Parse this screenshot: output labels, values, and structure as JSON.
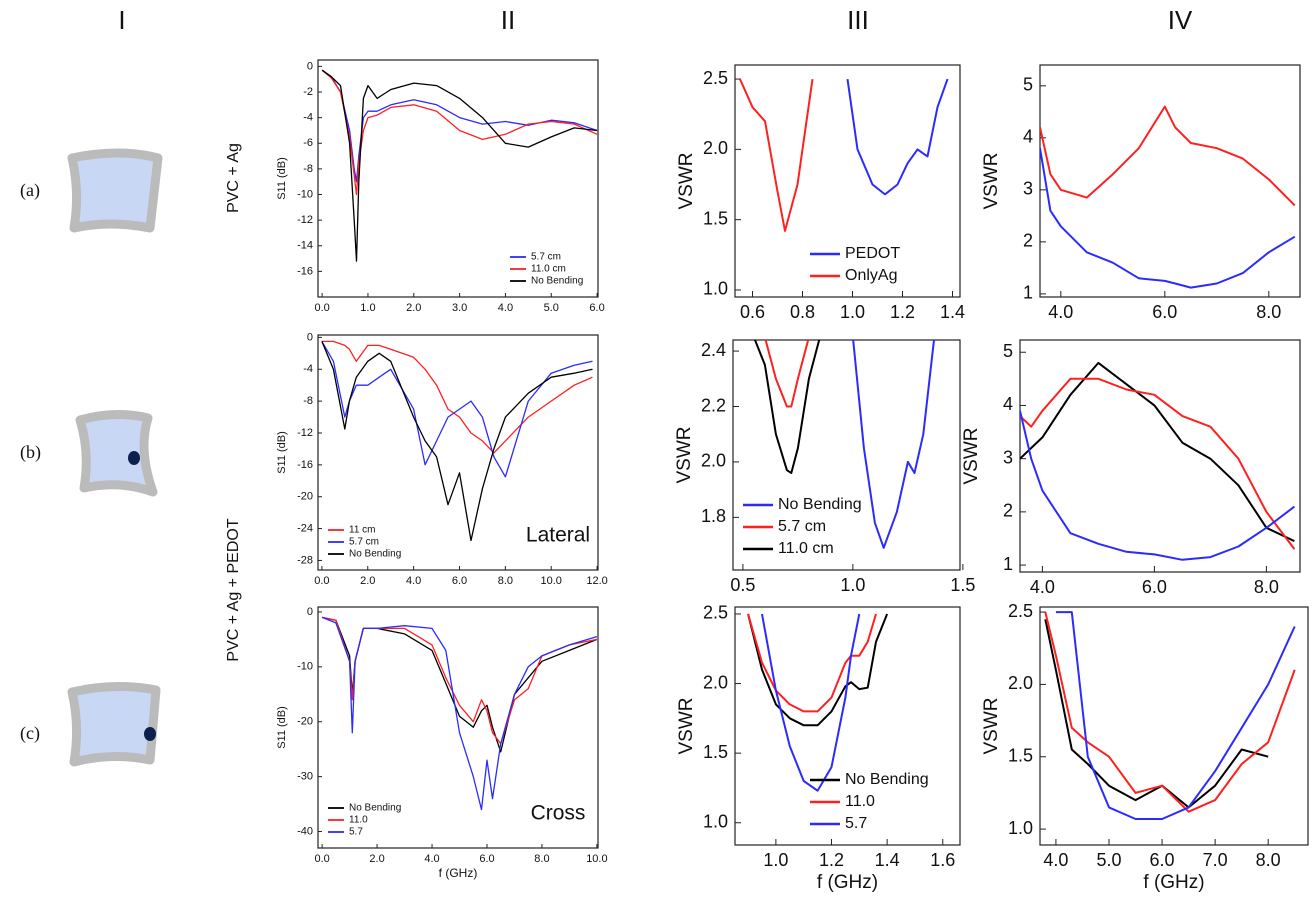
{
  "figure": {
    "columns": [
      "I",
      "II",
      "III",
      "IV"
    ],
    "rows": [
      "(a)",
      "(b)",
      "(c)"
    ],
    "row_groups": [
      "PVC + Ag",
      "PVC + Ag + PEDOT"
    ]
  },
  "chart_data": [
    {
      "type": "line",
      "ylabel": "S11 (dB)",
      "legend": "lower right",
      "x": [
        0,
        0.2,
        0.4,
        0.6,
        0.7,
        0.75,
        0.8,
        0.9,
        1.0,
        1.2,
        1.5,
        2.0,
        2.5,
        3.0,
        3.5,
        4.0,
        4.5,
        5.0,
        5.5,
        6.0
      ],
      "series": [
        {
          "name": "5.7 cm",
          "color": "#2b2bff",
          "values": [
            -0.3,
            -0.8,
            -2,
            -5,
            -8,
            -9,
            -7,
            -4,
            -3.5,
            -3.5,
            -3,
            -2.6,
            -3,
            -4,
            -4.5,
            -4.3,
            -4.6,
            -4.2,
            -4.4,
            -5
          ]
        },
        {
          "name": "11.0 cm",
          "color": "#ff2020",
          "values": [
            -0.3,
            -0.9,
            -2,
            -5.5,
            -8.5,
            -10,
            -7.5,
            -5,
            -4,
            -3.8,
            -3.2,
            -3,
            -3.5,
            -5,
            -5.7,
            -5.3,
            -4.5,
            -4.3,
            -4.5,
            -5.3
          ]
        },
        {
          "name": "No Bending",
          "color": "#000000",
          "values": [
            -0.3,
            -0.8,
            -1.5,
            -6,
            -12,
            -15.2,
            -9,
            -2.5,
            -1.5,
            -2.5,
            -1.8,
            -1.3,
            -1.5,
            -2.5,
            -4,
            -6,
            -6.3,
            -5.5,
            -4.8,
            -5
          ]
        }
      ],
      "xlim": [
        -0.09,
        6.02
      ],
      "ylim": [
        -18,
        0.5
      ],
      "xticks": [
        {
          "value": 0,
          "label": "0.0"
        },
        {
          "value": 1,
          "label": "1.0"
        },
        {
          "value": 2,
          "label": "2.0"
        },
        {
          "value": 3,
          "label": "3.0"
        },
        {
          "value": 4,
          "label": "4.0"
        },
        {
          "value": 5,
          "label": "5.0"
        },
        {
          "value": 6,
          "label": "6.0"
        }
      ],
      "yticks": [
        0,
        -2,
        -4,
        -6,
        -8,
        -10,
        -12,
        -14,
        -16
      ]
    },
    {
      "type": "line",
      "ylabel": "VSWR",
      "legend": "lower right",
      "x": [
        0.55,
        0.6,
        0.65,
        0.7,
        0.73,
        0.78,
        0.84,
        0.98,
        1.02,
        1.08,
        1.13,
        1.18,
        1.22,
        1.26,
        1.3,
        1.34,
        1.38
      ],
      "series": [
        {
          "name": "PEDOT",
          "color": "#2b2bff",
          "values": [
            null,
            null,
            null,
            null,
            null,
            null,
            null,
            2.5,
            2.0,
            1.75,
            1.68,
            1.75,
            1.9,
            2.0,
            1.95,
            2.3,
            2.5
          ]
        },
        {
          "name": "OnlyAg",
          "color": "#ff2020",
          "values": [
            2.5,
            2.3,
            2.2,
            1.7,
            1.42,
            1.75,
            2.5,
            null,
            null,
            null,
            null,
            null,
            null,
            null,
            null,
            null,
            null
          ]
        }
      ],
      "xlim": [
        0.53,
        1.43
      ],
      "ylim": [
        0.95,
        2.6
      ],
      "xticks": [
        0.6,
        0.8,
        {
          "value": 1.0,
          "label": "1.0"
        },
        1.2,
        1.4
      ],
      "yticks": [
        {
          "value": 1.0,
          "label": "1.0"
        },
        1.5,
        {
          "value": 2.0,
          "label": "2.0"
        },
        2.5
      ]
    },
    {
      "type": "line",
      "ylabel": "VSWR",
      "x": [
        3.6,
        3.8,
        4,
        4.5,
        5,
        5.5,
        6,
        6.2,
        6.5,
        7,
        7.5,
        8,
        8.5
      ],
      "series": [
        {
          "color": "#ff2020",
          "values": [
            4.2,
            3.3,
            3.0,
            2.85,
            3.3,
            3.8,
            4.6,
            4.2,
            3.9,
            3.8,
            3.6,
            3.2,
            2.7
          ]
        },
        {
          "color": "#2b2bff",
          "values": [
            3.8,
            2.6,
            2.3,
            1.8,
            1.6,
            1.3,
            1.25,
            1.2,
            1.12,
            1.2,
            1.4,
            1.8,
            2.1
          ]
        }
      ],
      "xlim": [
        3.6,
        8.6
      ],
      "ylim": [
        0.94,
        5.4
      ],
      "xticks": [
        {
          "value": 4,
          "label": "4.0"
        },
        {
          "value": 6,
          "label": "6.0"
        },
        {
          "value": 8,
          "label": "8.0"
        }
      ],
      "yticks": [
        1,
        2,
        3,
        4,
        5
      ]
    },
    {
      "type": "line",
      "ylabel": "S11 (dB)",
      "legend": "lower left",
      "annotation": "Lateral",
      "x": [
        0,
        0.5,
        1.0,
        1.2,
        1.5,
        2,
        2.5,
        3,
        4,
        4.5,
        5,
        5.5,
        6,
        6.5,
        7,
        7.5,
        8,
        9,
        10,
        11,
        11.8
      ],
      "series": [
        {
          "name": "11 cm",
          "color": "#ff2020",
          "values": [
            -0.5,
            -0.5,
            -1,
            -1.5,
            -3,
            -1,
            -1,
            -1.5,
            -2.5,
            -4,
            -6,
            -9,
            -10,
            -12,
            -13,
            -14.5,
            -13,
            -10,
            -8,
            -6,
            -5
          ]
        },
        {
          "name": "5.7 cm",
          "color": "#2b2bff",
          "values": [
            -0.5,
            -3,
            -10,
            -8,
            -6,
            -6,
            -5,
            -4,
            -9,
            -16,
            -13,
            -10,
            -9,
            -8,
            -10,
            -15,
            -17.5,
            -8,
            -4.5,
            -3.5,
            -3
          ]
        },
        {
          "name": "No Bending",
          "color": "#000000",
          "values": [
            -0.5,
            -4,
            -11.5,
            -8,
            -5,
            -3,
            -2,
            -3,
            -10,
            -13,
            -15,
            -21,
            -17,
            -25.5,
            -19,
            -14,
            -10,
            -7,
            -5,
            -4.5,
            -4
          ]
        }
      ],
      "xlim": [
        -0.17,
        12.04
      ],
      "ylim": [
        -29.2,
        0.3
      ],
      "xticks": [
        {
          "value": 0,
          "label": "0.0"
        },
        {
          "value": 2,
          "label": "2.0"
        },
        {
          "value": 4,
          "label": "4.0"
        },
        {
          "value": 6,
          "label": "6.0"
        },
        {
          "value": 8,
          "label": "8.0"
        },
        {
          "value": 10,
          "label": "10.0"
        },
        {
          "value": 12,
          "label": "12.0"
        }
      ],
      "yticks": [
        0,
        -4,
        -8,
        -12,
        -16,
        -20,
        -24,
        -28
      ]
    },
    {
      "type": "line",
      "ylabel": "VSWR",
      "legend": "lower left",
      "x": [
        0.55,
        0.6,
        0.65,
        0.7,
        0.72,
        0.75,
        0.8,
        0.85,
        1.0,
        1.05,
        1.1,
        1.14,
        1.2,
        1.25,
        1.28,
        1.32,
        1.37
      ],
      "series": [
        {
          "name": "No Bending",
          "color": "#2b2bff",
          "values": [
            null,
            null,
            null,
            null,
            null,
            null,
            null,
            null,
            2.45,
            2.05,
            1.78,
            1.69,
            1.82,
            2.0,
            1.96,
            2.1,
            2.45
          ]
        },
        {
          "name": "5.7 cm",
          "color": "#ff2020",
          "values": [
            null,
            2.45,
            2.3,
            2.2,
            2.2,
            2.3,
            2.45,
            null,
            null,
            null,
            null,
            null,
            null,
            null,
            null,
            null,
            null
          ]
        },
        {
          "name": "11.0 cm",
          "color": "#000000",
          "values": [
            2.45,
            2.35,
            2.1,
            1.97,
            1.96,
            2.05,
            2.3,
            2.45,
            null,
            null,
            null,
            null,
            null,
            null,
            null,
            null,
            null
          ]
        }
      ],
      "xlim": [
        0.455,
        1.487
      ],
      "ylim": [
        1.61,
        2.44
      ],
      "xticks": [
        0.5,
        {
          "value": 1.0,
          "label": "1.0"
        },
        1.5
      ],
      "yticks": [
        1.8,
        {
          "value": 2.0,
          "label": "2.0"
        },
        2.2,
        2.4
      ]
    },
    {
      "type": "line",
      "ylabel": "VSWR",
      "x": [
        3.6,
        3.8,
        4,
        4.5,
        5,
        5.5,
        6,
        6.5,
        7,
        7.5,
        8,
        8.5
      ],
      "series": [
        {
          "color": "#000000",
          "values": [
            3.0,
            3.2,
            3.4,
            4.2,
            4.8,
            4.4,
            4.0,
            3.3,
            3.0,
            2.5,
            1.7,
            1.45
          ]
        },
        {
          "color": "#ff2020",
          "values": [
            3.8,
            3.6,
            3.9,
            4.5,
            4.5,
            4.3,
            4.2,
            3.8,
            3.6,
            3.0,
            2.0,
            1.3
          ]
        },
        {
          "color": "#2b2bff",
          "values": [
            3.9,
            3.0,
            2.4,
            1.6,
            1.4,
            1.25,
            1.2,
            1.1,
            1.15,
            1.35,
            1.7,
            2.1
          ]
        }
      ],
      "xlim": [
        3.6,
        8.6
      ],
      "ylim": [
        0.87,
        5.23
      ],
      "xticks": [
        {
          "value": 4,
          "label": "4.0"
        },
        {
          "value": 6,
          "label": "6.0"
        },
        {
          "value": 8,
          "label": "8.0"
        }
      ],
      "yticks": [
        1,
        2,
        3,
        4,
        5
      ]
    },
    {
      "type": "line",
      "ylabel": "S11 (dB)",
      "xlabel": "f (GHz)",
      "legend": "lower left",
      "annotation": "Cross",
      "x": [
        0,
        0.5,
        1.0,
        1.1,
        1.2,
        1.5,
        2,
        3,
        4,
        4.5,
        5,
        5.5,
        5.8,
        6,
        6.2,
        6.5,
        7,
        7.5,
        8,
        9,
        10
      ],
      "series": [
        {
          "name": "No Bending",
          "color": "#000000",
          "values": [
            -1,
            -1.5,
            -8,
            -15,
            -9,
            -3,
            -3,
            -4,
            -7,
            -13,
            -19,
            -21,
            -18,
            -17,
            -21,
            -25.5,
            -15,
            -12,
            -9,
            -7,
            -5
          ]
        },
        {
          "name": "11.0",
          "color": "#ff2020",
          "values": [
            -1,
            -1.5,
            -9,
            -16,
            -9,
            -3,
            -3,
            -3,
            -6,
            -12,
            -17,
            -20,
            -16,
            -18,
            -22,
            -24,
            -16,
            -14,
            -8,
            -6,
            -5
          ]
        },
        {
          "name": "5.7",
          "color": "#2b2bff",
          "values": [
            -1,
            -2,
            -9,
            -22,
            -9,
            -3,
            -3,
            -2.5,
            -3,
            -7,
            -22,
            -30,
            -36,
            -27,
            -34,
            -24,
            -15,
            -10,
            -8,
            -6,
            -4.5
          ]
        }
      ],
      "xlim": [
        -0.15,
        10.04
      ],
      "ylim": [
        -43,
        0.9
      ],
      "xticks": [
        {
          "value": 0,
          "label": "0.0"
        },
        {
          "value": 2,
          "label": "2.0"
        },
        {
          "value": 4,
          "label": "4.0"
        },
        {
          "value": 6,
          "label": "6.0"
        },
        {
          "value": 8,
          "label": "8.0"
        },
        {
          "value": 10,
          "label": "10.0"
        }
      ],
      "yticks": [
        0,
        -10,
        -20,
        -30,
        -40
      ]
    },
    {
      "type": "line",
      "ylabel": "VSWR",
      "xlabel": "f (GHz)",
      "legend": "lower right",
      "x": [
        0.9,
        0.95,
        1.0,
        1.05,
        1.1,
        1.15,
        1.2,
        1.25,
        1.27,
        1.3,
        1.33,
        1.36,
        1.4
      ],
      "series": [
        {
          "name": "No Bending",
          "color": "#000000",
          "values": [
            2.5,
            2.1,
            1.85,
            1.75,
            1.7,
            1.7,
            1.8,
            1.98,
            2.01,
            1.96,
            1.97,
            2.3,
            2.5
          ]
        },
        {
          "name": "11.0",
          "color": "#ff2020",
          "values": [
            2.5,
            2.15,
            1.95,
            1.85,
            1.8,
            1.8,
            1.9,
            2.15,
            2.2,
            2.2,
            2.3,
            2.5,
            null
          ]
        },
        {
          "name": "5.7",
          "color": "#2b2bff",
          "values": [
            null,
            2.5,
            1.95,
            1.55,
            1.3,
            1.23,
            1.4,
            1.9,
            2.2,
            2.5,
            null,
            null,
            null
          ]
        }
      ],
      "xlim": [
        0.853,
        1.662
      ],
      "ylim": [
        0.84,
        2.55
      ],
      "xticks": [
        {
          "value": 1.0,
          "label": "1.0"
        },
        1.2,
        1.4,
        1.6
      ],
      "yticks": [
        {
          "value": 1.0,
          "label": "1.0"
        },
        1.5,
        {
          "value": 2.0,
          "label": "2.0"
        },
        2.5
      ]
    },
    {
      "type": "line",
      "ylabel": "VSWR",
      "xlabel": "f (GHz)",
      "x": [
        3.8,
        4,
        4.3,
        4.6,
        5,
        5.5,
        6,
        6.5,
        7,
        7.5,
        8,
        8.5
      ],
      "series": [
        {
          "color": "#000000",
          "values": [
            2.45,
            2.1,
            1.55,
            1.45,
            1.3,
            1.2,
            1.3,
            1.15,
            1.3,
            1.55,
            1.5,
            null
          ]
        },
        {
          "color": "#ff2020",
          "values": [
            2.5,
            2.2,
            1.7,
            1.6,
            1.5,
            1.25,
            1.3,
            1.12,
            1.2,
            1.45,
            1.6,
            2.1
          ]
        },
        {
          "color": "#2b2bff",
          "values": [
            null,
            2.5,
            2.5,
            1.5,
            1.15,
            1.07,
            1.07,
            1.15,
            1.4,
            1.7,
            2.0,
            2.4
          ]
        }
      ],
      "xlim": [
        3.7,
        8.75
      ],
      "ylim": [
        0.89,
        2.535
      ],
      "xticks": [
        {
          "value": 4,
          "label": "4.0"
        },
        {
          "value": 5,
          "label": "5.0"
        },
        {
          "value": 6,
          "label": "6.0"
        },
        {
          "value": 7,
          "label": "7.0"
        },
        {
          "value": 8,
          "label": "8.0"
        }
      ],
      "yticks": [
        {
          "value": 1.0,
          "label": "1.0"
        },
        1.5,
        {
          "value": 2.0,
          "label": "2.0"
        },
        2.5
      ]
    }
  ]
}
